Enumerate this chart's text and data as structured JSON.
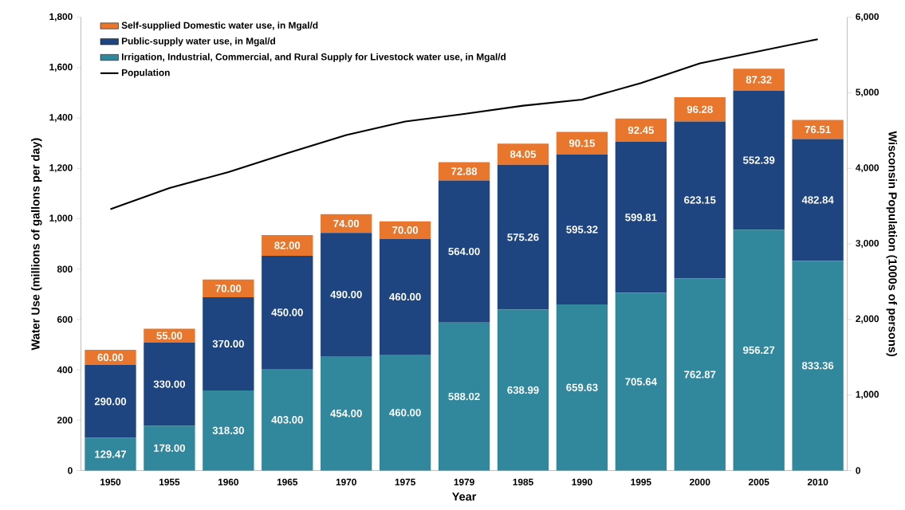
{
  "chart_data": {
    "type": "bar",
    "stacked": true,
    "xlabel": "Year",
    "ylabel": "Water Use (millions of gallons per day)",
    "y2label": "Wisconsin Population (1000s of persons)",
    "categories": [
      "1950",
      "1955",
      "1960",
      "1965",
      "1970",
      "1975",
      "1979",
      "1985",
      "1990",
      "1995",
      "2000",
      "2005",
      "2010"
    ],
    "series": [
      {
        "name": "Irrigation, Industrial, Commercial, and Rural Supply for Livestock water use, in Mgal/d",
        "color": "#31879c",
        "values": [
          129.47,
          178.0,
          318.3,
          403.0,
          454.0,
          460.0,
          588.02,
          638.99,
          659.63,
          705.64,
          762.87,
          956.27,
          833.36
        ],
        "value_labels": [
          "129.47",
          "178.00",
          "318.30",
          "403.00",
          "454.00",
          "460.00",
          "588.02",
          "638.99",
          "659.63",
          "705.64",
          "762.87",
          "956.27",
          "833.36"
        ]
      },
      {
        "name": "Public-supply water use, in Mgal/d",
        "color": "#1f4580",
        "values": [
          290.0,
          330.0,
          370.0,
          450.0,
          490.0,
          460.0,
          564.0,
          575.26,
          595.32,
          599.81,
          623.15,
          552.39,
          482.84
        ],
        "value_labels": [
          "290.00",
          "330.00",
          "370.00",
          "450.00",
          "490.00",
          "460.00",
          "564.00",
          "575.26",
          "595.32",
          "599.81",
          "623.15",
          "552.39",
          "482.84"
        ]
      },
      {
        "name": "Self-supplied Domestic water use, in Mgal/d",
        "color": "#e8762c",
        "values": [
          60.0,
          55.0,
          70.0,
          82.0,
          74.0,
          70.0,
          72.88,
          84.05,
          90.15,
          92.45,
          96.28,
          87.32,
          76.51
        ],
        "value_labels": [
          "60.00",
          "55.00",
          "70.00",
          "82.00",
          "74.00",
          "70.00",
          "72.88",
          "84.05",
          "90.15",
          "92.45",
          "96.28",
          "87.32",
          "76.51"
        ]
      },
      {
        "name": "Population",
        "type": "line",
        "axis": "y2",
        "color": "#000000",
        "values": [
          3460,
          3740,
          3950,
          4200,
          4440,
          4620,
          4720,
          4830,
          4910,
          5130,
          5390,
          5550,
          5710
        ]
      }
    ],
    "ylim": [
      0,
      1800
    ],
    "yticks": [
      0,
      200,
      400,
      600,
      800,
      {
        "value": 1000,
        "label": "1,000"
      },
      {
        "value": 1200,
        "label": "1,200"
      },
      {
        "value": 1400,
        "label": "1,400"
      },
      {
        "value": 1600,
        "label": "1,600"
      },
      {
        "value": 1800,
        "label": "1,800"
      }
    ],
    "y2lim": [
      0,
      6000
    ],
    "y2ticks": [
      0,
      {
        "value": 1000,
        "label": "1,000"
      },
      {
        "value": 2000,
        "label": "2,000"
      },
      {
        "value": 3000,
        "label": "3,000"
      },
      {
        "value": 4000,
        "label": "4,000"
      },
      {
        "value": 5000,
        "label": "5,000"
      },
      {
        "value": 6000,
        "label": "6,000"
      }
    ],
    "legend": "top left",
    "grid": false
  }
}
